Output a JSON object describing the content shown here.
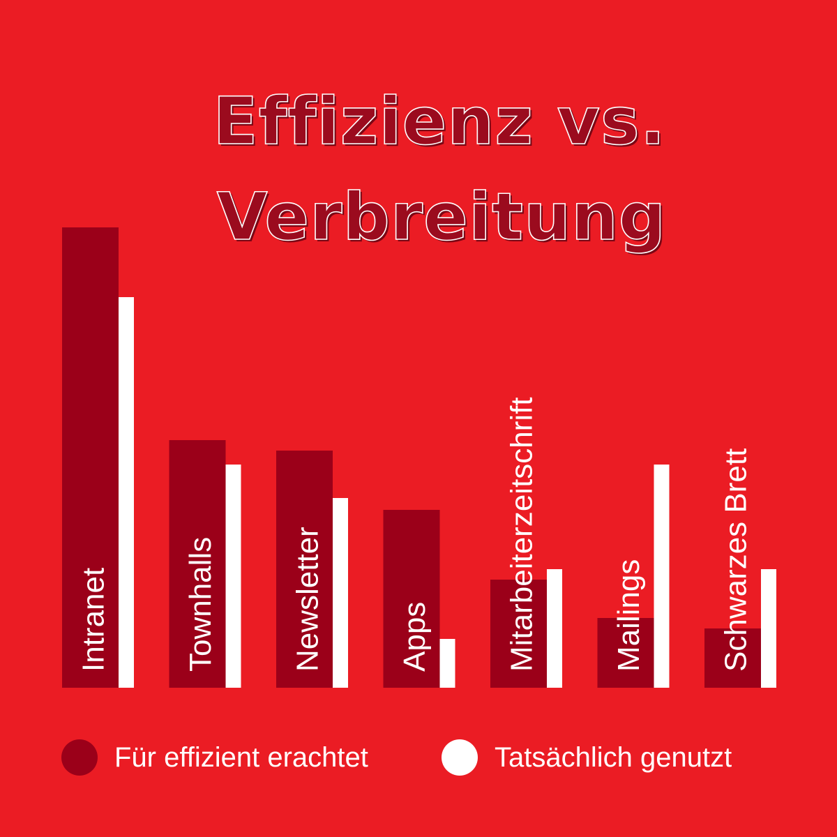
{
  "colors": {
    "background": "#eb1c24",
    "series_effizient": "#9b0019",
    "series_genutzt": "#ffffff",
    "title_fill": "#9b0b1e",
    "title_outline": "#ffffff"
  },
  "title": {
    "line1": "Effizienz vs.",
    "line2": "Verbreitung"
  },
  "legend": {
    "items": [
      {
        "label": "Für effizient erachtet",
        "color": "#9b0019"
      },
      {
        "label": "Tatsächlich genutzt",
        "color": "#ffffff"
      }
    ]
  },
  "chart_data": {
    "type": "bar",
    "title": "Effizienz vs. Verbreitung",
    "xlabel": "",
    "ylabel": "",
    "grid": false,
    "legend_position": "bottom",
    "categories": [
      "Intranet",
      "Townhalls",
      "Newsletter",
      "Apps",
      "Mitarbeiterzeitschrift",
      "Mailings",
      "Schwarzes Brett"
    ],
    "series": [
      {
        "name": "Für effizient erachtet",
        "color": "#9b0019",
        "values": [
          66,
          35.5,
          34,
          25.5,
          15.5,
          10,
          8.5
        ]
      },
      {
        "name": "Tatsächlich genutzt",
        "color": "#ffffff",
        "values": [
          56,
          32,
          27.2,
          7,
          17,
          32,
          17
        ]
      }
    ],
    "ylim": [
      0,
      70
    ]
  }
}
